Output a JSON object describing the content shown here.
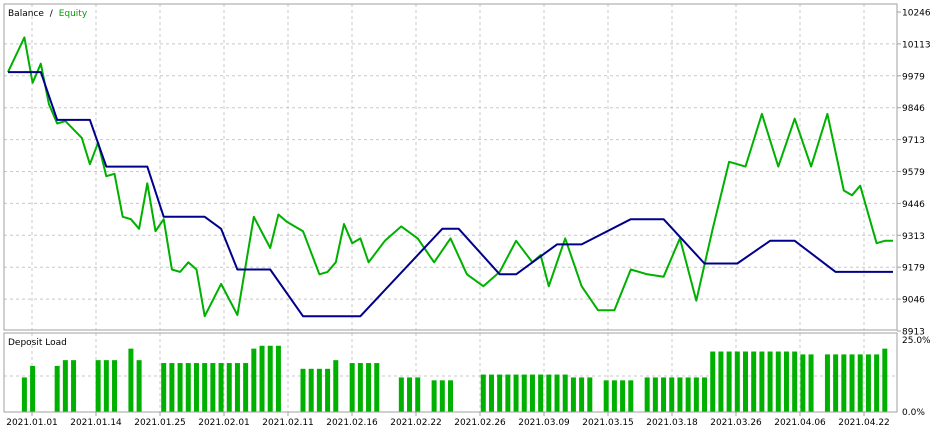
{
  "colors": {
    "balance": "#00008b",
    "equity": "#00b000",
    "deposit_load": "#00b000",
    "grid": "#c8c8c8",
    "frame": "#a0a0a0",
    "background": "#ffffff"
  },
  "chart_data": [
    {
      "type": "line",
      "legend": {
        "balance": "Balance",
        "separator": "/",
        "equity": "Equity",
        "placement": "top-left"
      },
      "grid": true,
      "ylim": [
        8913,
        10246
      ],
      "y_ticks": [
        "10246",
        "10113",
        "9979",
        "9846",
        "9713",
        "9579",
        "9446",
        "9313",
        "9179",
        "9046",
        "8913"
      ],
      "x_range": [
        0,
        108
      ],
      "series": [
        {
          "name": "Balance",
          "x": [
            0,
            4,
            6,
            10,
            12,
            17,
            19,
            24,
            26,
            28,
            32,
            36,
            43,
            53,
            55,
            60,
            62,
            67,
            70,
            76,
            80,
            85,
            89,
            93,
            96,
            101,
            104,
            108
          ],
          "y": [
            9995,
            9995,
            9795,
            9795,
            9600,
            9600,
            9390,
            9390,
            9340,
            9170,
            9170,
            8975,
            8975,
            9340,
            9340,
            9150,
            9150,
            9275,
            9275,
            9380,
            9380,
            9195,
            9195,
            9290,
            9290,
            9160,
            9160,
            9160
          ]
        },
        {
          "name": "Equity",
          "x": [
            0,
            2,
            3,
            4,
            5,
            6,
            7,
            9,
            10,
            11,
            12,
            13,
            14,
            15,
            16,
            17,
            18,
            19,
            20,
            21,
            22,
            23,
            24,
            26,
            28,
            30,
            32,
            33,
            34,
            36,
            38,
            39,
            40,
            41,
            42,
            43,
            44,
            46,
            48,
            50,
            52,
            54,
            56,
            58,
            60,
            62,
            64,
            65,
            66,
            68,
            70,
            72,
            74,
            76,
            78,
            80,
            82,
            84,
            86,
            88,
            90,
            92,
            94,
            96,
            98,
            100,
            102,
            103,
            104,
            106,
            107,
            108
          ],
          "y": [
            9995,
            10140,
            9950,
            10030,
            9860,
            9780,
            9790,
            9720,
            9610,
            9700,
            9560,
            9570,
            9390,
            9380,
            9340,
            9530,
            9330,
            9380,
            9170,
            9160,
            9200,
            9170,
            8975,
            9110,
            8980,
            9390,
            9260,
            9400,
            9370,
            9330,
            9150,
            9160,
            9200,
            9360,
            9280,
            9300,
            9200,
            9290,
            9350,
            9300,
            9200,
            9300,
            9150,
            9100,
            9160,
            9290,
            9200,
            9230,
            9100,
            9300,
            9100,
            9000,
            9000,
            9170,
            9150,
            9140,
            9300,
            9040,
            9340,
            9620,
            9600,
            9820,
            9600,
            9800,
            9600,
            9820,
            9500,
            9480,
            9520,
            9280,
            9290,
            9290
          ]
        }
      ]
    },
    {
      "type": "bar",
      "title": "Deposit Load",
      "ylim": [
        0,
        25
      ],
      "y_ticks": [
        "25.0%",
        "0.0%"
      ],
      "x_range": [
        0,
        108
      ],
      "categories": [
        "2021.01.01",
        "2021.01.14",
        "2021.01.25",
        "2021.02.01",
        "2021.02.11",
        "2021.02.16",
        "2021.02.22",
        "2021.02.26",
        "2021.03.09",
        "2021.03.15",
        "2021.03.18",
        "2021.03.26",
        "2021.04.06",
        "2021.04.22"
      ],
      "x": [
        2,
        3,
        6,
        7,
        8,
        11,
        12,
        13,
        15,
        16,
        19,
        20,
        21,
        22,
        23,
        24,
        25,
        26,
        27,
        28,
        29,
        30,
        31,
        32,
        33,
        36,
        37,
        38,
        39,
        40,
        42,
        43,
        44,
        45,
        48,
        49,
        50,
        52,
        53,
        54,
        58,
        59,
        60,
        61,
        62,
        63,
        64,
        65,
        66,
        67,
        68,
        69,
        70,
        71,
        73,
        74,
        75,
        76,
        78,
        79,
        80,
        81,
        82,
        83,
        84,
        85,
        86,
        87,
        88,
        89,
        90,
        91,
        92,
        93,
        94,
        95,
        96,
        97,
        98,
        100,
        101,
        102,
        103,
        104,
        105,
        106,
        107
      ],
      "values": [
        12,
        16,
        16,
        18,
        18,
        18,
        18,
        18,
        22,
        18,
        17,
        17,
        17,
        17,
        17,
        17,
        17,
        17,
        17,
        17,
        17,
        22,
        23,
        23,
        23,
        15,
        15,
        15,
        15,
        18,
        17,
        17,
        17,
        17,
        12,
        12,
        12,
        11,
        11,
        11,
        13,
        13,
        13,
        13,
        13,
        13,
        13,
        13,
        13,
        13,
        13,
        12,
        12,
        12,
        11,
        11,
        11,
        11,
        12,
        12,
        12,
        12,
        12,
        12,
        12,
        12,
        21,
        21,
        21,
        21,
        21,
        21,
        21,
        21,
        21,
        21,
        21,
        20,
        20,
        20,
        20,
        20,
        20,
        20,
        20,
        20,
        22
      ]
    }
  ],
  "x_axis": {
    "labels": [
      "2021.01.01",
      "2021.01.14",
      "2021.01.25",
      "2021.02.01",
      "2021.02.11",
      "2021.02.16",
      "2021.02.22",
      "2021.02.26",
      "2021.03.09",
      "2021.03.15",
      "2021.03.18",
      "2021.03.26",
      "2021.04.06",
      "2021.04.22"
    ]
  }
}
